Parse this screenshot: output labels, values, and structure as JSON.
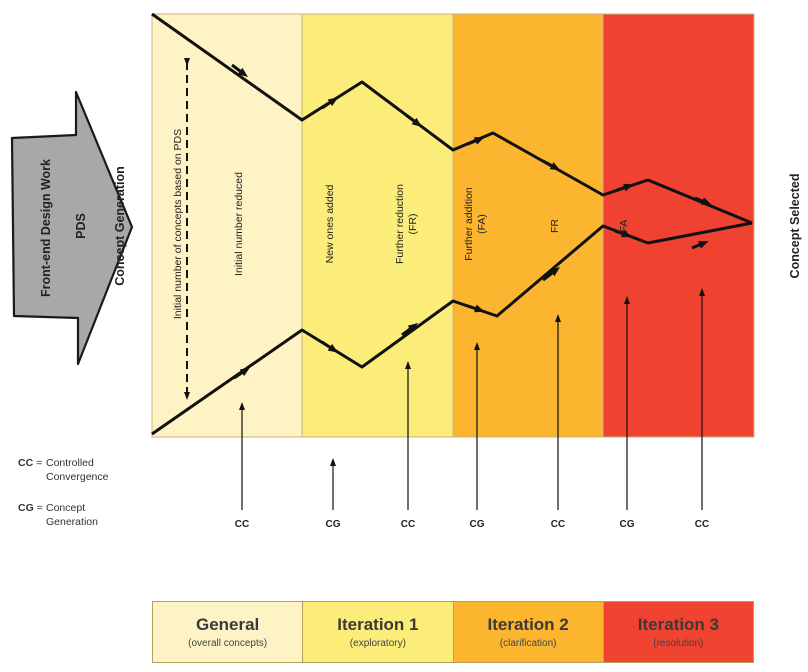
{
  "left_arrow": {
    "front_end_label": "Front-end Design Work",
    "pds_label": "PDS",
    "concept_generation_label": "Concept Generation"
  },
  "concept_selected_label": "Concept Selected",
  "zones": [
    {
      "name": "General",
      "subtitle": "(overall concepts)",
      "color": "#fdf3c4"
    },
    {
      "name": "Iteration 1",
      "subtitle": "(exploratory)",
      "color": "#fcec7a"
    },
    {
      "name": "Iteration 2",
      "subtitle": "(clarification)",
      "color": "#fbb52e"
    },
    {
      "name": "Iteration 3",
      "subtitle": "(resolution)",
      "color": "#ef4230"
    }
  ],
  "vertical_labels": {
    "initial_concepts": "Initial number of concepts based on PDS",
    "initial_reduced": "Initial number reduced",
    "new_added": "New ones added",
    "further_reduction_1": "Further reduction",
    "further_reduction_2": "(FR)",
    "further_addition_1": "Further addition",
    "further_addition_2": "(FA)",
    "fr": "FR",
    "fa": "FA"
  },
  "markers": [
    "CC",
    "CG",
    "CC",
    "CG",
    "CC",
    "CG",
    "CC"
  ],
  "legend": {
    "cc_key": "CC",
    "cc_eq": "=",
    "cc_line1": "Controlled",
    "cc_line2": "Convergence",
    "cg_key": "CG",
    "cg_eq": "=",
    "cg_line1": "Concept",
    "cg_line2": "Generation"
  }
}
